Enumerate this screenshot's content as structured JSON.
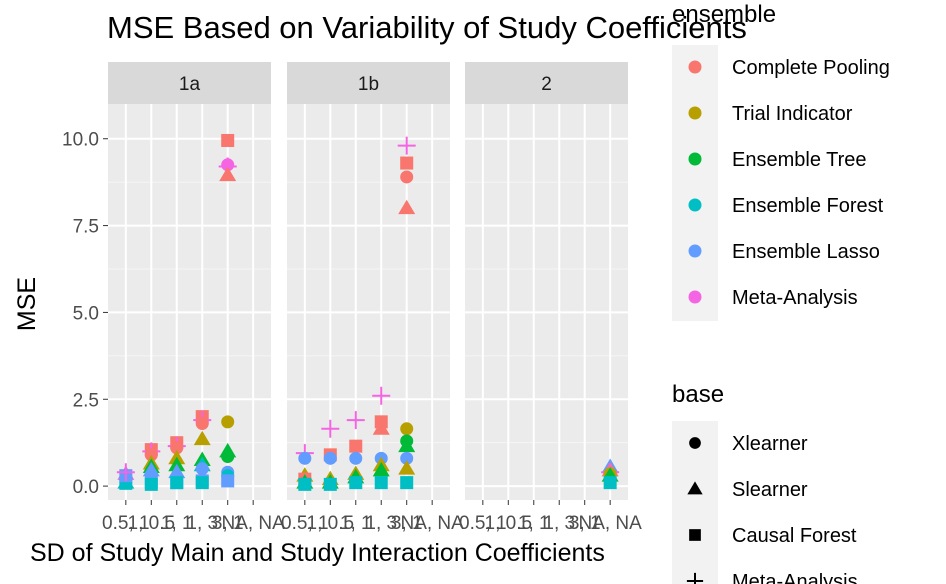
{
  "chart_data": {
    "type": "scatter",
    "title": "MSE Based on Variability of Study Coefficients",
    "xlabel": "SD of Study Main and Study Interaction Coefficients",
    "ylabel": "MSE",
    "ylim": [
      -0.4,
      11.0
    ],
    "y_ticks": [
      "0.0",
      "2.5",
      "5.0",
      "7.5",
      "10.0"
    ],
    "y_tick_values": [
      0,
      2.5,
      5,
      7.5,
      10
    ],
    "x_tick_labels": [
      "0.5, 1",
      "1, 0.5",
      "1, 1",
      "1, 3",
      "3, 1",
      "NA, NA"
    ],
    "facets": [
      "1a",
      "1b",
      "2"
    ],
    "legend_ensemble": {
      "title": "ensemble",
      "entries": [
        {
          "name": "Complete Pooling",
          "color": "#F8766D"
        },
        {
          "name": "Trial Indicator",
          "color": "#B79F00"
        },
        {
          "name": "Ensemble Tree",
          "color": "#00BA38"
        },
        {
          "name": "Ensemble Forest",
          "color": "#00BFC4"
        },
        {
          "name": "Ensemble Lasso",
          "color": "#619CFF"
        },
        {
          "name": "Meta-Analysis",
          "color": "#F564E3"
        }
      ]
    },
    "legend_base": {
      "title": "base",
      "entries": [
        {
          "name": "Xlearner",
          "shape": "circle"
        },
        {
          "name": "Slearner",
          "shape": "triangle"
        },
        {
          "name": "Causal Forest",
          "shape": "square"
        },
        {
          "name": "Meta-Analysis",
          "shape": "plus"
        }
      ]
    },
    "points": [
      {
        "facet": "1a",
        "x": 1,
        "y": 0.35,
        "ens": 5,
        "shape": "triangle"
      },
      {
        "facet": "1a",
        "x": 1,
        "y": 0.1,
        "ens": 3,
        "shape": "triangle"
      },
      {
        "facet": "1a",
        "x": 1,
        "y": 0.08,
        "ens": 3,
        "shape": "square"
      },
      {
        "facet": "1a",
        "x": 1,
        "y": 0.3,
        "ens": 4,
        "shape": "square"
      },
      {
        "facet": "1a",
        "x": 1,
        "y": 0.4,
        "ens": 5,
        "shape": "plus"
      },
      {
        "facet": "1a",
        "x": 2,
        "y": 1.05,
        "ens": 0,
        "shape": "square"
      },
      {
        "facet": "1a",
        "x": 2,
        "y": 1.0,
        "ens": 5,
        "shape": "plus"
      },
      {
        "facet": "1a",
        "x": 2,
        "y": 0.9,
        "ens": 0,
        "shape": "circle"
      },
      {
        "facet": "1a",
        "x": 2,
        "y": 0.65,
        "ens": 1,
        "shape": "triangle"
      },
      {
        "facet": "1a",
        "x": 2,
        "y": 0.55,
        "ens": 2,
        "shape": "triangle"
      },
      {
        "facet": "1a",
        "x": 2,
        "y": 0.45,
        "ens": 4,
        "shape": "triangle"
      },
      {
        "facet": "1a",
        "x": 2,
        "y": 0.12,
        "ens": 4,
        "shape": "square"
      },
      {
        "facet": "1a",
        "x": 2,
        "y": 0.05,
        "ens": 3,
        "shape": "square"
      },
      {
        "facet": "1a",
        "x": 3,
        "y": 1.25,
        "ens": 0,
        "shape": "square"
      },
      {
        "facet": "1a",
        "x": 3,
        "y": 1.15,
        "ens": 5,
        "shape": "plus"
      },
      {
        "facet": "1a",
        "x": 3,
        "y": 1.1,
        "ens": 0,
        "shape": "circle"
      },
      {
        "facet": "1a",
        "x": 3,
        "y": 0.8,
        "ens": 1,
        "shape": "triangle"
      },
      {
        "facet": "1a",
        "x": 3,
        "y": 0.6,
        "ens": 2,
        "shape": "triangle"
      },
      {
        "facet": "1a",
        "x": 3,
        "y": 0.4,
        "ens": 4,
        "shape": "triangle"
      },
      {
        "facet": "1a",
        "x": 3,
        "y": 0.1,
        "ens": 4,
        "shape": "square"
      },
      {
        "facet": "1a",
        "x": 3,
        "y": 0.1,
        "ens": 3,
        "shape": "square"
      },
      {
        "facet": "1a",
        "x": 4,
        "y": 2.0,
        "ens": 0,
        "shape": "square"
      },
      {
        "facet": "1a",
        "x": 4,
        "y": 1.9,
        "ens": 5,
        "shape": "plus"
      },
      {
        "facet": "1a",
        "x": 4,
        "y": 1.8,
        "ens": 0,
        "shape": "circle"
      },
      {
        "facet": "1a",
        "x": 4,
        "y": 1.35,
        "ens": 1,
        "shape": "triangle"
      },
      {
        "facet": "1a",
        "x": 4,
        "y": 0.75,
        "ens": 2,
        "shape": "triangle"
      },
      {
        "facet": "1a",
        "x": 4,
        "y": 0.6,
        "ens": 3,
        "shape": "triangle"
      },
      {
        "facet": "1a",
        "x": 4,
        "y": 0.5,
        "ens": 4,
        "shape": "circle"
      },
      {
        "facet": "1a",
        "x": 4,
        "y": 0.15,
        "ens": 4,
        "shape": "square"
      },
      {
        "facet": "1a",
        "x": 4,
        "y": 0.1,
        "ens": 3,
        "shape": "square"
      },
      {
        "facet": "1a",
        "x": 5,
        "y": 9.95,
        "ens": 0,
        "shape": "square"
      },
      {
        "facet": "1a",
        "x": 5,
        "y": 9.25,
        "ens": 5,
        "shape": "circle"
      },
      {
        "facet": "1a",
        "x": 5,
        "y": 9.2,
        "ens": 5,
        "shape": "plus"
      },
      {
        "facet": "1a",
        "x": 5,
        "y": 8.95,
        "ens": 0,
        "shape": "triangle"
      },
      {
        "facet": "1a",
        "x": 5,
        "y": 1.85,
        "ens": 1,
        "shape": "circle"
      },
      {
        "facet": "1a",
        "x": 5,
        "y": 1.0,
        "ens": 2,
        "shape": "triangle"
      },
      {
        "facet": "1a",
        "x": 5,
        "y": 0.85,
        "ens": 2,
        "shape": "circle"
      },
      {
        "facet": "1a",
        "x": 5,
        "y": 0.4,
        "ens": 4,
        "shape": "circle"
      },
      {
        "facet": "1a",
        "x": 5,
        "y": 0.3,
        "ens": 3,
        "shape": "circle"
      },
      {
        "facet": "1a",
        "x": 5,
        "y": 0.15,
        "ens": 4,
        "shape": "square"
      },
      {
        "facet": "1b",
        "x": 1,
        "y": 0.95,
        "ens": 5,
        "shape": "plus"
      },
      {
        "facet": "1b",
        "x": 1,
        "y": 0.8,
        "ens": 4,
        "shape": "circle"
      },
      {
        "facet": "1b",
        "x": 1,
        "y": 0.3,
        "ens": 1,
        "shape": "triangle"
      },
      {
        "facet": "1b",
        "x": 1,
        "y": 0.2,
        "ens": 0,
        "shape": "square"
      },
      {
        "facet": "1b",
        "x": 1,
        "y": 0.1,
        "ens": 2,
        "shape": "triangle"
      },
      {
        "facet": "1b",
        "x": 1,
        "y": 0.05,
        "ens": 3,
        "shape": "square"
      },
      {
        "facet": "1b",
        "x": 2,
        "y": 1.65,
        "ens": 5,
        "shape": "plus"
      },
      {
        "facet": "1b",
        "x": 2,
        "y": 0.9,
        "ens": 0,
        "shape": "square"
      },
      {
        "facet": "1b",
        "x": 2,
        "y": 0.8,
        "ens": 4,
        "shape": "circle"
      },
      {
        "facet": "1b",
        "x": 2,
        "y": 0.2,
        "ens": 1,
        "shape": "triangle"
      },
      {
        "facet": "1b",
        "x": 2,
        "y": 0.1,
        "ens": 2,
        "shape": "triangle"
      },
      {
        "facet": "1b",
        "x": 2,
        "y": 0.05,
        "ens": 3,
        "shape": "square"
      },
      {
        "facet": "1b",
        "x": 3,
        "y": 1.9,
        "ens": 5,
        "shape": "plus"
      },
      {
        "facet": "1b",
        "x": 3,
        "y": 1.15,
        "ens": 0,
        "shape": "square"
      },
      {
        "facet": "1b",
        "x": 3,
        "y": 0.8,
        "ens": 4,
        "shape": "circle"
      },
      {
        "facet": "1b",
        "x": 3,
        "y": 0.35,
        "ens": 1,
        "shape": "triangle"
      },
      {
        "facet": "1b",
        "x": 3,
        "y": 0.25,
        "ens": 2,
        "shape": "triangle"
      },
      {
        "facet": "1b",
        "x": 3,
        "y": 0.1,
        "ens": 3,
        "shape": "square"
      },
      {
        "facet": "1b",
        "x": 4,
        "y": 2.6,
        "ens": 5,
        "shape": "plus"
      },
      {
        "facet": "1b",
        "x": 4,
        "y": 1.85,
        "ens": 0,
        "shape": "square"
      },
      {
        "facet": "1b",
        "x": 4,
        "y": 1.65,
        "ens": 0,
        "shape": "triangle"
      },
      {
        "facet": "1b",
        "x": 4,
        "y": 0.8,
        "ens": 4,
        "shape": "circle"
      },
      {
        "facet": "1b",
        "x": 4,
        "y": 0.6,
        "ens": 1,
        "shape": "triangle"
      },
      {
        "facet": "1b",
        "x": 4,
        "y": 0.45,
        "ens": 2,
        "shape": "triangle"
      },
      {
        "facet": "1b",
        "x": 4,
        "y": 0.1,
        "ens": 3,
        "shape": "square"
      },
      {
        "facet": "1b",
        "x": 5,
        "y": 9.8,
        "ens": 5,
        "shape": "plus"
      },
      {
        "facet": "1b",
        "x": 5,
        "y": 9.3,
        "ens": 0,
        "shape": "square"
      },
      {
        "facet": "1b",
        "x": 5,
        "y": 8.9,
        "ens": 0,
        "shape": "circle"
      },
      {
        "facet": "1b",
        "x": 5,
        "y": 8.0,
        "ens": 0,
        "shape": "triangle"
      },
      {
        "facet": "1b",
        "x": 5,
        "y": 1.65,
        "ens": 1,
        "shape": "circle"
      },
      {
        "facet": "1b",
        "x": 5,
        "y": 1.3,
        "ens": 2,
        "shape": "circle"
      },
      {
        "facet": "1b",
        "x": 5,
        "y": 1.15,
        "ens": 2,
        "shape": "triangle"
      },
      {
        "facet": "1b",
        "x": 5,
        "y": 0.8,
        "ens": 4,
        "shape": "circle"
      },
      {
        "facet": "1b",
        "x": 5,
        "y": 0.5,
        "ens": 1,
        "shape": "triangle"
      },
      {
        "facet": "1b",
        "x": 5,
        "y": 0.1,
        "ens": 3,
        "shape": "square"
      },
      {
        "facet": "2",
        "x": 6,
        "y": 0.55,
        "ens": 4,
        "shape": "triangle"
      },
      {
        "facet": "2",
        "x": 6,
        "y": 0.45,
        "ens": 0,
        "shape": "triangle"
      },
      {
        "facet": "2",
        "x": 6,
        "y": 0.4,
        "ens": 5,
        "shape": "plus"
      },
      {
        "facet": "2",
        "x": 6,
        "y": 0.35,
        "ens": 1,
        "shape": "circle"
      },
      {
        "facet": "2",
        "x": 6,
        "y": 0.3,
        "ens": 2,
        "shape": "triangle"
      },
      {
        "facet": "2",
        "x": 6,
        "y": 0.1,
        "ens": 3,
        "shape": "square"
      }
    ]
  }
}
